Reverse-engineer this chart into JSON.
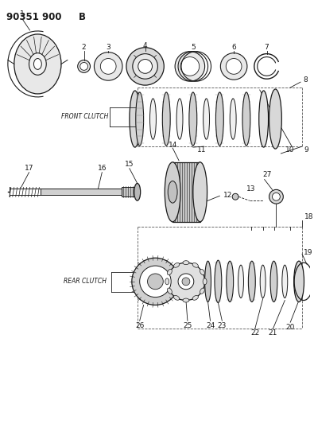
{
  "title1": "90351 900",
  "title2": "B",
  "bg_color": "#ffffff",
  "lc": "#1a1a1a",
  "front_clutch_label": "FRONT CLUTCH",
  "rear_clutch_label": "REAR CLUTCH"
}
